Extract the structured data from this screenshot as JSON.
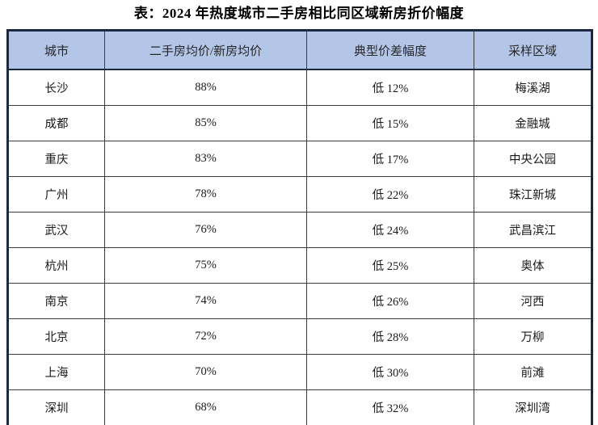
{
  "title": "表：2024 年热度城市二手房相比同区域新房折价幅度",
  "table": {
    "headers": [
      "城市",
      "二手房均价/新房均价",
      "典型价差幅度",
      "采样区域"
    ],
    "rows": [
      [
        "长沙",
        "88%",
        "低 12%",
        "梅溪湖"
      ],
      [
        "成都",
        "85%",
        "低 15%",
        "金融城"
      ],
      [
        "重庆",
        "83%",
        "低 17%",
        "中央公园"
      ],
      [
        "广州",
        "78%",
        "低 22%",
        "珠江新城"
      ],
      [
        "武汉",
        "76%",
        "低 24%",
        "武昌滨江"
      ],
      [
        "杭州",
        "75%",
        "低 25%",
        "奥体"
      ],
      [
        "南京",
        "74%",
        "低 26%",
        "河西"
      ],
      [
        "北京",
        "72%",
        "低 28%",
        "万柳"
      ],
      [
        "上海",
        "70%",
        "低 30%",
        "前滩"
      ],
      [
        "深圳",
        "68%",
        "低 32%",
        "深圳湾"
      ]
    ],
    "colors": {
      "header_bg": "#b4c6e7",
      "outer_border": "#1c2740",
      "grid_line": "#3a3a3a",
      "text": "#1a1a1a"
    }
  }
}
